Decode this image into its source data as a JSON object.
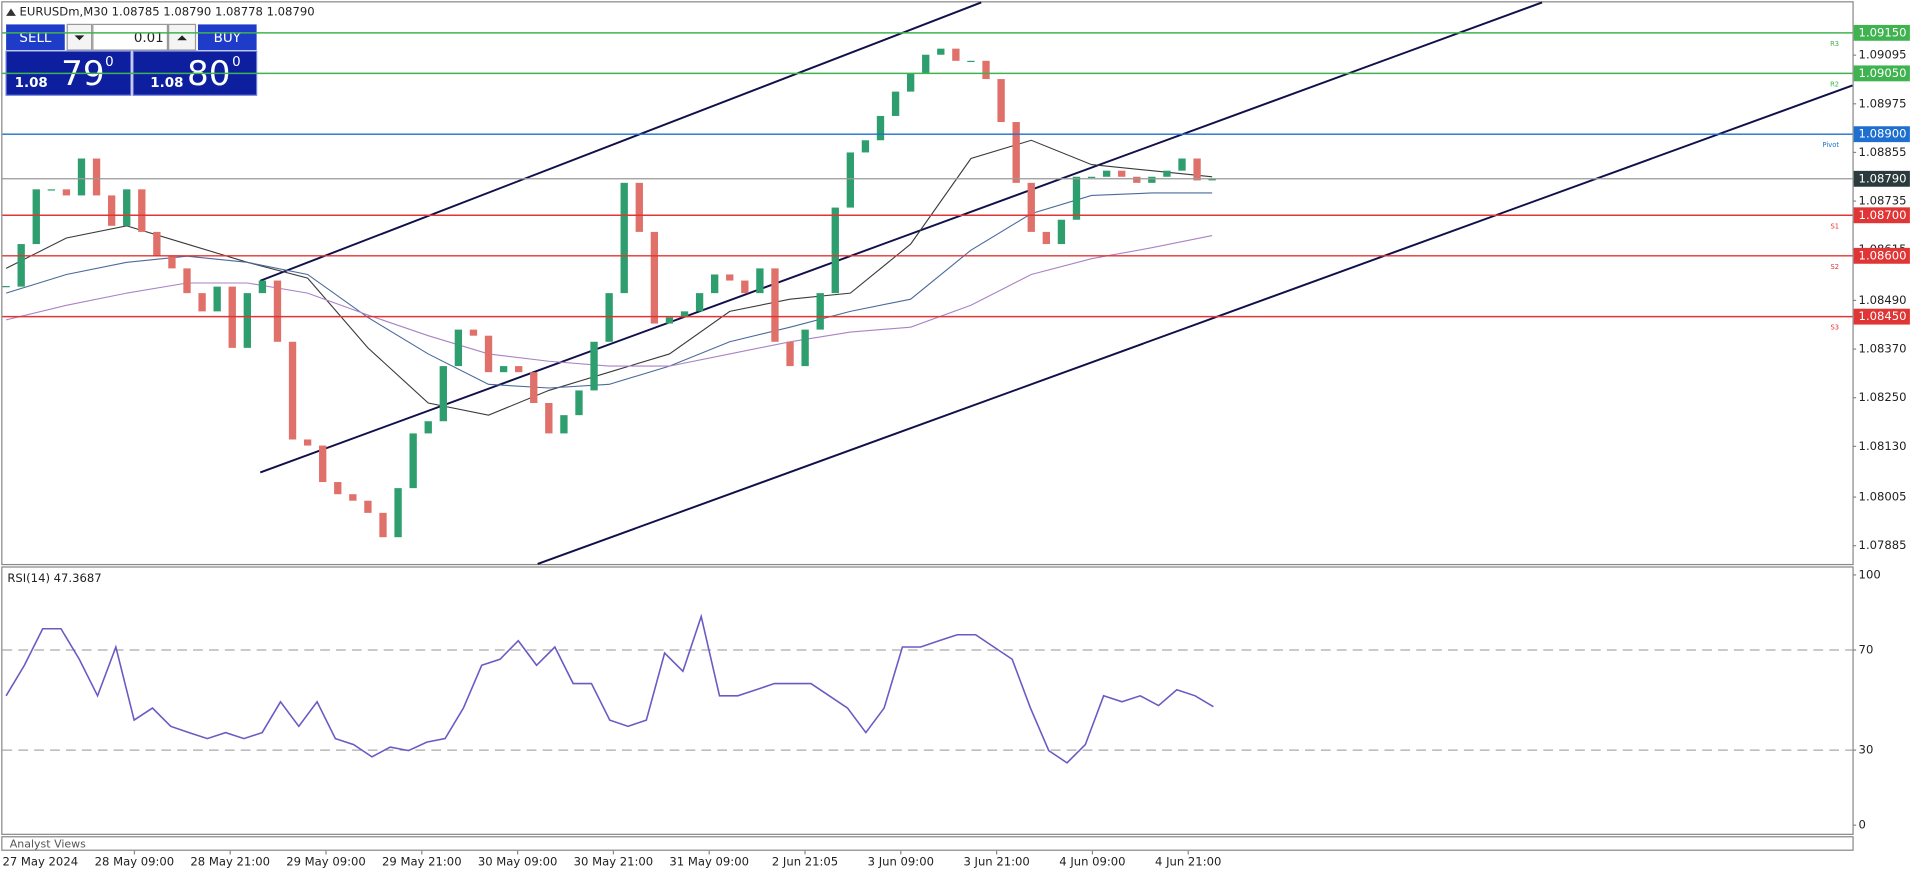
{
  "header": {
    "symbol_line": "EURUSDm,M30 1.08785 1.08790 1.08778 1.08790"
  },
  "trade_panel": {
    "sell": "SELL",
    "lot": "0.01",
    "buy": "BUY",
    "bid_big": "1.08",
    "bid_digits": "79",
    "bid_point": "0",
    "ask_big": "1.08",
    "ask_digits": "80",
    "ask_point": "0"
  },
  "chart_data": {
    "type": "candlestick",
    "ylim": [
      1.0784,
      1.09231
    ],
    "yticks": [
      1.09095,
      1.08975,
      1.08855,
      1.08735,
      1.08615,
      {
        "value": 1.0849,
        "label": "1.08490"
      },
      {
        "value": 1.0837,
        "label": "1.08370"
      },
      {
        "value": 1.0825,
        "label": "1.08250"
      },
      {
        "value": 1.0813,
        "label": "1.08130"
      },
      1.08005,
      1.07885
    ],
    "categories": [
      "27 May 2024",
      "28 May 09:00",
      "28 May 21:00",
      "29 May 09:00",
      "29 May 21:00",
      "30 May 09:00",
      "30 May 21:00",
      "31 May 09:00",
      "2 Jun 21:05",
      "3 Jun 09:00",
      "3 Jun 21:00",
      "4 Jun 09:00",
      "4 Jun 21:00"
    ],
    "up_color": "#2e9e6e",
    "down_color": "#e0706a",
    "close": [
      1.08524,
      1.08629,
      1.08764,
      1.08764,
      1.08749,
      1.0884,
      1.08749,
      1.08674,
      1.08764,
      1.08659,
      1.08599,
      1.08569,
      1.08508,
      1.08463,
      1.08524,
      1.08373,
      1.08508,
      1.08539,
      1.08388,
      1.08147,
      1.08132,
      1.08042,
      1.08012,
      1.07996,
      1.07966,
      1.07906,
      1.08027,
      1.08162,
      1.08192,
      1.08328,
      1.08418,
      1.08403,
      1.08313,
      1.08328,
      1.08313,
      1.08237,
      1.08162,
      1.08207,
      1.08268,
      1.08388,
      1.08508,
      1.0878,
      1.08659,
      1.08433,
      1.08448,
      1.08463,
      1.08508,
      1.08554,
      1.08539,
      1.08508,
      1.08569,
      1.08388,
      1.08328,
      1.08418,
      1.08508,
      1.08719,
      1.08855,
      1.08885,
      1.08945,
      1.09005,
      1.09051,
      1.09096,
      1.09111,
      1.09081,
      1.09081,
      1.09036,
      1.0893,
      1.0878,
      1.08659,
      1.08629,
      1.08689,
      1.08795,
      1.08795,
      1.0881,
      1.08795,
      1.0878,
      1.08795,
      1.0881,
      1.0884,
      1.08786,
      1.0879
    ],
    "moving_averages": [
      {
        "color": "#3a3a3a",
        "values": [
          1.08569,
          1.08644,
          1.08674,
          1.08629,
          1.08584,
          1.08545,
          1.08373,
          1.08237,
          1.08207,
          1.08268,
          1.08313,
          1.08358,
          1.08463,
          1.08493,
          1.08508,
          1.08629,
          1.0884,
          1.08885,
          1.08825,
          1.0881,
          1.08795
        ]
      },
      {
        "color": "#4a6a9a",
        "values": [
          1.08508,
          1.08554,
          1.08584,
          1.08599,
          1.08584,
          1.08554,
          1.08448,
          1.08358,
          1.08283,
          1.08274,
          1.08283,
          1.08328,
          1.08388,
          1.08424,
          1.08463,
          1.08493,
          1.08614,
          1.08704,
          1.08749,
          1.08755,
          1.08755
        ]
      },
      {
        "color": "#a983c4",
        "values": [
          1.08442,
          1.08478,
          1.08508,
          1.08533,
          1.08533,
          1.08508,
          1.08454,
          1.08403,
          1.08358,
          1.0834,
          1.08328,
          1.08328,
          1.08358,
          1.08388,
          1.08412,
          1.08424,
          1.08478,
          1.08554,
          1.08593,
          1.0862,
          1.0865
        ]
      }
    ],
    "levels": [
      {
        "name": "R3",
        "value": 1.0915,
        "label": "1.09150",
        "color": "#3fb34f"
      },
      {
        "name": "R2",
        "value": 1.0905,
        "label": "1.09050",
        "color": "#3fb34f"
      },
      {
        "name": "Pivot",
        "value": 1.089,
        "label": "1.08900",
        "color": "#1e6fd0"
      },
      {
        "name": "S1",
        "value": 1.087,
        "label": "1.08700",
        "color": "#e03535"
      },
      {
        "name": "S2",
        "value": 1.086,
        "label": "1.08600",
        "color": "#e03535"
      },
      {
        "name": "S3",
        "value": 1.0845,
        "label": "1.08450",
        "color": "#e03535"
      }
    ],
    "current_price": {
      "value": 1.0879,
      "label": "1.08790"
    },
    "rsi": {
      "title": "RSI(14) 47.3687",
      "color": "#6a5bc4",
      "ylim": [
        0,
        100
      ],
      "yticks": [
        100,
        70,
        30,
        0
      ],
      "levels": [
        70,
        30
      ],
      "values": [
        51.7,
        63.9,
        78.5,
        78.5,
        66.3,
        51.7,
        71.2,
        42,
        46.8,
        39.5,
        37,
        34.6,
        37,
        34.6,
        37,
        49.3,
        39.5,
        49.3,
        34.6,
        32.2,
        27.3,
        31.2,
        29.8,
        33.2,
        34.6,
        46.8,
        63.9,
        66.3,
        73.7,
        63.9,
        71.2,
        56.6,
        56.6,
        42,
        39.5,
        42,
        68.8,
        61.5,
        83.4,
        51.7,
        51.7,
        54.1,
        56.6,
        56.6,
        56.6,
        51.7,
        46.8,
        37,
        46.8,
        71.2,
        71.2,
        73.7,
        76.1,
        76.1,
        71.2,
        66.3,
        46.8,
        29.8,
        24.9,
        32.2,
        51.7,
        49.3,
        51.7,
        47.8,
        54.1,
        51.7,
        47.3687
      ]
    },
    "analyst_panel": "Analyst Views"
  }
}
